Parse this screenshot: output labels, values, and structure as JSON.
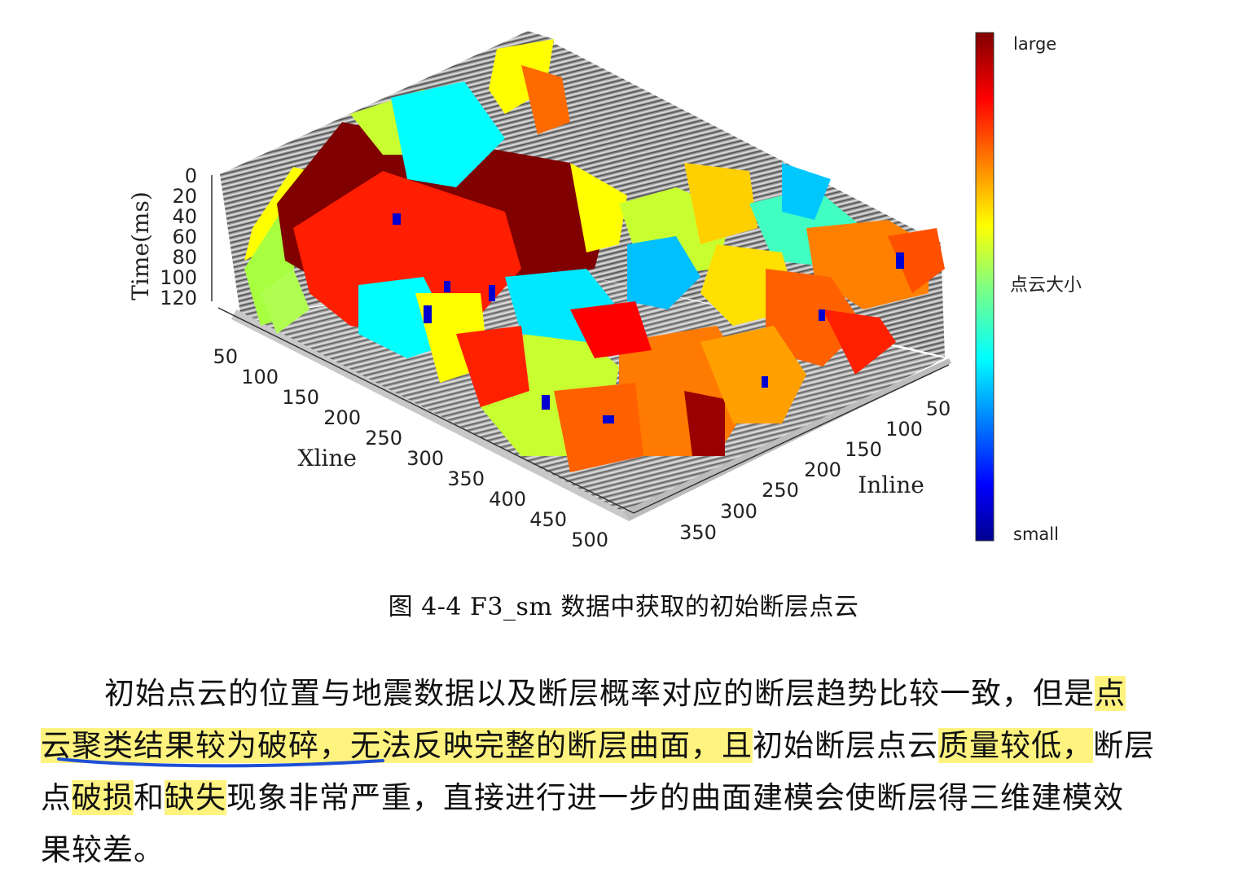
{
  "figure": {
    "z_axis": {
      "label": "Time(ms)",
      "ticks": [
        "0",
        "20",
        "40",
        "60",
        "80",
        "100",
        "120"
      ]
    },
    "x_axis": {
      "label": "Xline",
      "ticks": [
        "50",
        "100",
        "150",
        "200",
        "250",
        "300",
        "350",
        "400",
        "450",
        "500"
      ]
    },
    "y_axis": {
      "label": "Inline",
      "ticks": [
        "50",
        "100",
        "150",
        "200",
        "250",
        "300",
        "350"
      ]
    },
    "colorbar": {
      "top_label": "large",
      "middle_label": "点云大小",
      "bottom_label": "small"
    }
  },
  "caption": "图 4-4 F3_sm 数据中获取的初始断层点云",
  "paragraph": {
    "line1": {
      "normal": "初始点云的位置与地震数据以及断层概率对应的断层趋势比较一致，但是",
      "hl": "点"
    },
    "line2": {
      "hl1": "云聚类结果较为破碎，无法反映完整的断层曲面，且",
      "normal1": "初始断层点云",
      "hl2": "质量较低，",
      "normal2": "断层"
    },
    "line3": {
      "n1": "点",
      "h1": "破损",
      "n2": "和",
      "h2": "缺失",
      "n3": "现象非常严重，直接进行进一步的曲面建模会使断层得三维建模效"
    },
    "line4": {
      "normal": "果较差。"
    }
  },
  "colors": {
    "highlight": "#fff380",
    "pen": "#1d4fd6"
  }
}
